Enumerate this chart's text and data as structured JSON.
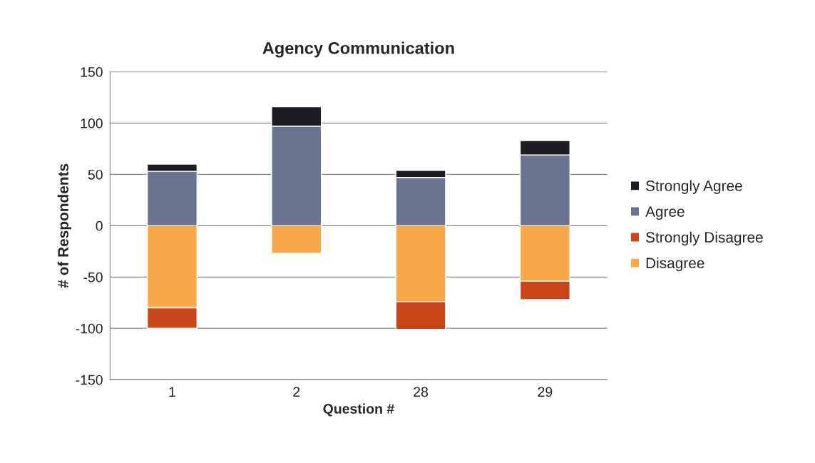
{
  "chart_data": {
    "type": "bar",
    "title": "Agency Communication",
    "xlabel": "Question #",
    "ylabel": "# of Respondents",
    "categories": [
      "1",
      "2",
      "28",
      "29"
    ],
    "stacked": true,
    "series": [
      {
        "name": "Disagree",
        "color": "#f9a94a",
        "values": [
          -80,
          -27,
          -74,
          -54
        ]
      },
      {
        "name": "Strongly Disagree",
        "color": "#c9461a",
        "values": [
          -20,
          0,
          -27,
          -18
        ]
      },
      {
        "name": "Agree",
        "color": "#6a7490",
        "values": [
          53,
          97,
          47,
          69
        ]
      },
      {
        "name": "Strongly Agree",
        "color": "#1c1c22",
        "values": [
          7,
          19,
          7,
          14
        ]
      }
    ],
    "ylim": [
      -150,
      150
    ],
    "yticks": [
      -150,
      -100,
      -50,
      0,
      50,
      100,
      150
    ],
    "grid": "y",
    "legend": "right"
  }
}
